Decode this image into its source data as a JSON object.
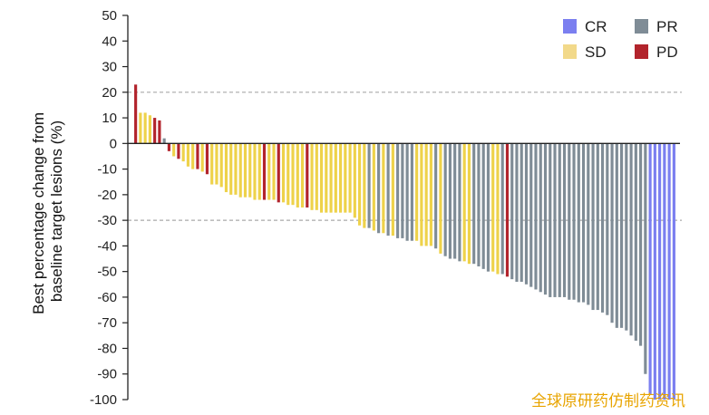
{
  "chart_data": {
    "type": "bar",
    "title": "",
    "ylabel": "Best percentage change from baseline target lesions (%)",
    "ylabel_lines": [
      "Best percentage change from",
      "baseline target lesions (%)"
    ],
    "xlabel": "",
    "ylim": [
      -100,
      50
    ],
    "yticks": [
      50,
      40,
      30,
      20,
      10,
      0,
      -10,
      -20,
      -30,
      -40,
      -50,
      -60,
      -70,
      -80,
      -90,
      -100
    ],
    "reference_lines": [
      20,
      -30
    ],
    "legend": [
      {
        "label": "CR",
        "color": "#7b7ff0"
      },
      {
        "label": "PR",
        "color": "#7f8c96"
      },
      {
        "label": "SD",
        "color": "#f2d98a"
      },
      {
        "label": "PD",
        "color": "#b2242c"
      }
    ],
    "series_colors": {
      "CR": "#7b7ff0",
      "PR": "#7f8c96",
      "SD": "#eed24a",
      "PD": "#b2242c"
    },
    "bars": [
      {
        "value": 23,
        "response": "PD"
      },
      {
        "value": 12,
        "response": "SD"
      },
      {
        "value": 12,
        "response": "SD"
      },
      {
        "value": 11,
        "response": "SD"
      },
      {
        "value": 10,
        "response": "PD"
      },
      {
        "value": 9,
        "response": "PD"
      },
      {
        "value": 2,
        "response": "PR"
      },
      {
        "value": -3,
        "response": "PD"
      },
      {
        "value": -5,
        "response": "SD"
      },
      {
        "value": -6,
        "response": "PD"
      },
      {
        "value": -7,
        "response": "SD"
      },
      {
        "value": -9,
        "response": "SD"
      },
      {
        "value": -10,
        "response": "SD"
      },
      {
        "value": -10,
        "response": "PD"
      },
      {
        "value": -11,
        "response": "SD"
      },
      {
        "value": -12,
        "response": "PD"
      },
      {
        "value": -16,
        "response": "SD"
      },
      {
        "value": -16,
        "response": "SD"
      },
      {
        "value": -17,
        "response": "SD"
      },
      {
        "value": -19,
        "response": "SD"
      },
      {
        "value": -20,
        "response": "SD"
      },
      {
        "value": -20,
        "response": "SD"
      },
      {
        "value": -21,
        "response": "SD"
      },
      {
        "value": -21,
        "response": "SD"
      },
      {
        "value": -21,
        "response": "SD"
      },
      {
        "value": -22,
        "response": "SD"
      },
      {
        "value": -22,
        "response": "SD"
      },
      {
        "value": -22,
        "response": "PD"
      },
      {
        "value": -22,
        "response": "SD"
      },
      {
        "value": -22,
        "response": "SD"
      },
      {
        "value": -23,
        "response": "PD"
      },
      {
        "value": -23,
        "response": "SD"
      },
      {
        "value": -24,
        "response": "SD"
      },
      {
        "value": -24,
        "response": "SD"
      },
      {
        "value": -25,
        "response": "SD"
      },
      {
        "value": -25,
        "response": "SD"
      },
      {
        "value": -25,
        "response": "PD"
      },
      {
        "value": -26,
        "response": "SD"
      },
      {
        "value": -26,
        "response": "SD"
      },
      {
        "value": -27,
        "response": "SD"
      },
      {
        "value": -27,
        "response": "SD"
      },
      {
        "value": -27,
        "response": "SD"
      },
      {
        "value": -27,
        "response": "SD"
      },
      {
        "value": -27,
        "response": "SD"
      },
      {
        "value": -27,
        "response": "SD"
      },
      {
        "value": -27,
        "response": "SD"
      },
      {
        "value": -29,
        "response": "SD"
      },
      {
        "value": -32,
        "response": "SD"
      },
      {
        "value": -33,
        "response": "SD"
      },
      {
        "value": -33,
        "response": "PR"
      },
      {
        "value": -34,
        "response": "SD"
      },
      {
        "value": -35,
        "response": "PR"
      },
      {
        "value": -35,
        "response": "SD"
      },
      {
        "value": -36,
        "response": "PR"
      },
      {
        "value": -36,
        "response": "SD"
      },
      {
        "value": -37,
        "response": "PR"
      },
      {
        "value": -37,
        "response": "PR"
      },
      {
        "value": -38,
        "response": "PR"
      },
      {
        "value": -38,
        "response": "PR"
      },
      {
        "value": -38,
        "response": "SD"
      },
      {
        "value": -40,
        "response": "SD"
      },
      {
        "value": -40,
        "response": "SD"
      },
      {
        "value": -40,
        "response": "SD"
      },
      {
        "value": -41,
        "response": "PR"
      },
      {
        "value": -43,
        "response": "SD"
      },
      {
        "value": -44,
        "response": "PR"
      },
      {
        "value": -45,
        "response": "PR"
      },
      {
        "value": -45,
        "response": "PR"
      },
      {
        "value": -46,
        "response": "PR"
      },
      {
        "value": -46,
        "response": "SD"
      },
      {
        "value": -47,
        "response": "SD"
      },
      {
        "value": -47,
        "response": "PR"
      },
      {
        "value": -48,
        "response": "PR"
      },
      {
        "value": -49,
        "response": "PR"
      },
      {
        "value": -50,
        "response": "PR"
      },
      {
        "value": -50,
        "response": "SD"
      },
      {
        "value": -51,
        "response": "SD"
      },
      {
        "value": -51,
        "response": "PR"
      },
      {
        "value": -52,
        "response": "PD"
      },
      {
        "value": -53,
        "response": "PR"
      },
      {
        "value": -54,
        "response": "PR"
      },
      {
        "value": -54,
        "response": "PR"
      },
      {
        "value": -55,
        "response": "PR"
      },
      {
        "value": -56,
        "response": "PR"
      },
      {
        "value": -57,
        "response": "PR"
      },
      {
        "value": -58,
        "response": "PR"
      },
      {
        "value": -59,
        "response": "PR"
      },
      {
        "value": -60,
        "response": "PR"
      },
      {
        "value": -60,
        "response": "PR"
      },
      {
        "value": -60,
        "response": "PR"
      },
      {
        "value": -60,
        "response": "PR"
      },
      {
        "value": -61,
        "response": "PR"
      },
      {
        "value": -61,
        "response": "PR"
      },
      {
        "value": -62,
        "response": "PR"
      },
      {
        "value": -62,
        "response": "PR"
      },
      {
        "value": -63,
        "response": "PR"
      },
      {
        "value": -65,
        "response": "PR"
      },
      {
        "value": -65,
        "response": "PR"
      },
      {
        "value": -66,
        "response": "PR"
      },
      {
        "value": -67,
        "response": "PR"
      },
      {
        "value": -70,
        "response": "PR"
      },
      {
        "value": -72,
        "response": "PR"
      },
      {
        "value": -72,
        "response": "PR"
      },
      {
        "value": -73,
        "response": "PR"
      },
      {
        "value": -75,
        "response": "PR"
      },
      {
        "value": -77,
        "response": "PR"
      },
      {
        "value": -79,
        "response": "PR"
      },
      {
        "value": -90,
        "response": "PR"
      },
      {
        "value": -98,
        "response": "CR"
      },
      {
        "value": -100,
        "response": "CR"
      },
      {
        "value": -100,
        "response": "CR"
      },
      {
        "value": -100,
        "response": "CR"
      },
      {
        "value": -100,
        "response": "CR"
      },
      {
        "value": -100,
        "response": "CR"
      }
    ]
  },
  "watermark": "全球原研药仿制药资讯"
}
